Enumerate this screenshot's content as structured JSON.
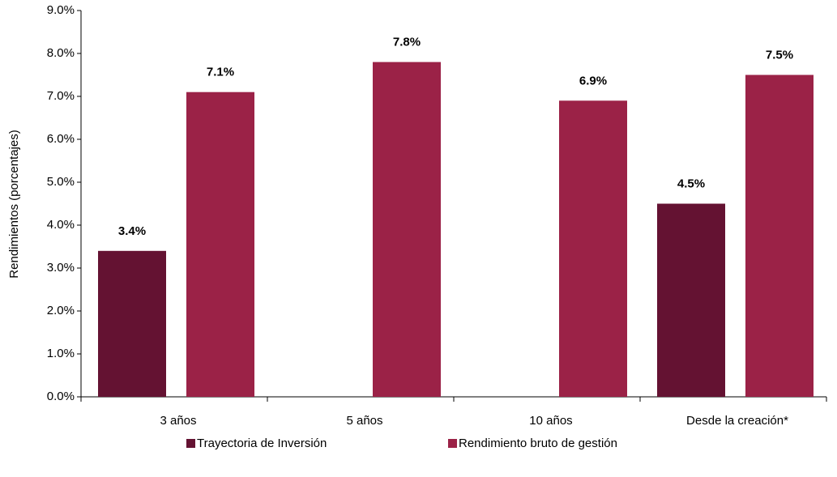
{
  "chart_data": {
    "type": "bar",
    "y_label": "Rendimientos (porcentajes)",
    "categories": [
      "3 años",
      "5 años",
      "10 años",
      "Desde la creación*"
    ],
    "series": [
      {
        "name": "Trayectoria de Inversión",
        "color": "#641232",
        "values": [
          3.4,
          null,
          null,
          4.5
        ],
        "value_labels": [
          "3.4%",
          null,
          null,
          "4.5%"
        ]
      },
      {
        "name": "Rendimiento bruto de gestión",
        "color": "#9b2247",
        "values": [
          7.1,
          7.8,
          6.9,
          7.5
        ],
        "value_labels": [
          "7.1%",
          "7.8%",
          "6.9%",
          "7.5%"
        ]
      }
    ],
    "ylim": [
      0,
      9
    ],
    "yticks": [
      {
        "value": 0,
        "label": "0.0%"
      },
      {
        "value": 1,
        "label": "1.0%"
      },
      {
        "value": 2,
        "label": "2.0%"
      },
      {
        "value": 3,
        "label": "3.0%"
      },
      {
        "value": 4,
        "label": "4.0%"
      },
      {
        "value": 5,
        "label": "5.0%"
      },
      {
        "value": 6,
        "label": "6.0%"
      },
      {
        "value": 7,
        "label": "7.0%"
      },
      {
        "value": 8,
        "label": "8.0%"
      },
      {
        "value": 9,
        "label": "9.0%"
      }
    ],
    "grid": false,
    "legend": "bottom"
  }
}
